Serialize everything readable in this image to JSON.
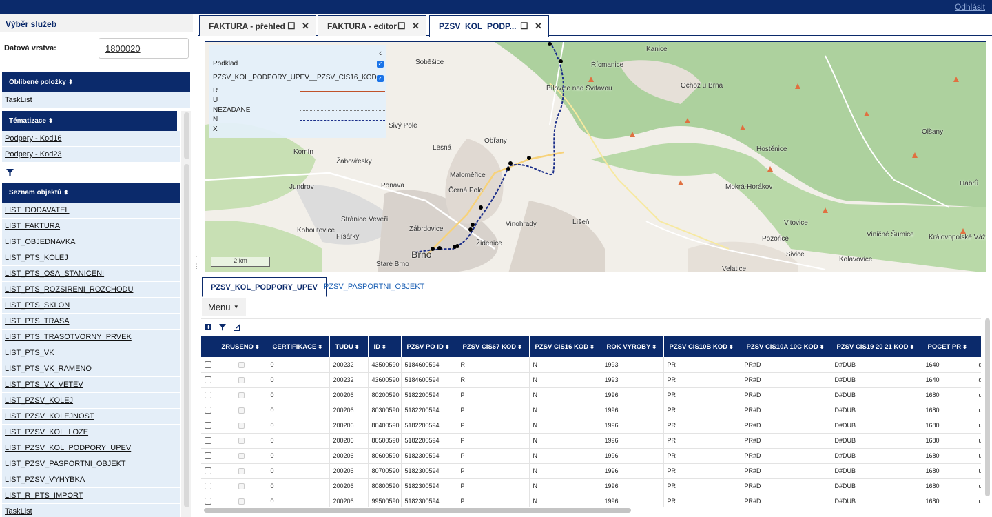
{
  "topbar": {
    "logout": "Odhlásit"
  },
  "left": {
    "title": "Výběr služeb",
    "data_layer_label": "Datová vrstva:",
    "data_layer_value": "1800020",
    "favorites": {
      "header": "Oblíbené položky",
      "items": [
        "TaskList"
      ]
    },
    "themes": {
      "header": "Tématizace",
      "items": [
        "Podpery - Kod16",
        "Podpery - Kod23"
      ]
    },
    "objects": {
      "header": "Seznam objektů",
      "items": [
        "LIST_DODAVATEL",
        "LIST_FAKTURA",
        "LIST_OBJEDNAVKA",
        "LIST_PTS_KOLEJ",
        "LIST_PTS_OSA_STANICENI",
        "LIST_PTS_ROZSIRENI_ROZCHODU",
        "LIST_PTS_SKLON",
        "LIST_PTS_TRASA",
        "LIST_PTS_TRASOTVORNY_PRVEK",
        "LIST_PTS_VK",
        "LIST_PTS_VK_RAMENO",
        "LIST_PTS_VK_VETEV",
        "LIST_PZSV_KOLEJ",
        "LIST_PZSV_KOLEJNOST",
        "LIST_PZSV_KOL_LOZE",
        "LIST_PZSV_KOL_PODPORY_UPEV",
        "LIST_PZSV_PASPORTNI_OBJEKT",
        "LIST_PZSV_VYHYBKA",
        "LIST_R_PTS_IMPORT",
        "TaskList"
      ]
    }
  },
  "tabs": [
    {
      "label": "FAKTURA - přehled"
    },
    {
      "label": "FAKTURA - editor"
    },
    {
      "label": "PZSV_KOL_PODP..."
    }
  ],
  "map": {
    "legend": {
      "base": "Podklad",
      "layer": "PZSV_KOL_PODPORY_UPEV__PZSV_CIS16_KOD",
      "entries": [
        {
          "label": "R",
          "color": "#c0522a",
          "style": "solid"
        },
        {
          "label": "U",
          "color": "#1c2f8a",
          "style": "solid"
        },
        {
          "label": "NEZADANE",
          "color": "#777777",
          "style": "dotted"
        },
        {
          "label": "N",
          "color": "#1c2f8a",
          "style": "dashed"
        },
        {
          "label": "X",
          "color": "#2c8a3a",
          "style": "dashed"
        }
      ]
    },
    "scale": "2 km",
    "places": [
      "Kanice",
      "Soběšice",
      "Řícmanice",
      "Ochoz u Brna",
      "Bílovice nad Svitavou",
      "Sivý Pole",
      "Lesná",
      "Obřany",
      "Komín",
      "Žabovřesky",
      "Maloměřice",
      "Hostěnice",
      "Olšany",
      "Jundrov",
      "Ponava",
      "Černá Pole",
      "Mokrá-Horákov",
      "Habrů",
      "Kohoutovice",
      "Stránice",
      "Veveří",
      "Vinohrady",
      "Líšeň",
      "Vitovice",
      "Písárky",
      "Zábrdovice",
      "Židenice",
      "Pozořice",
      "Viničné Šumice",
      "Královopolské Vážany",
      "Brno",
      "Staré Brno",
      "Sivice",
      "Kolavovice",
      "Velatice"
    ]
  },
  "subtabs": [
    "PZSV_KOL_PODPORY_UPEV",
    "PZSV_PASPORTNI_OBJEKT"
  ],
  "menu": "Menu",
  "table": {
    "columns": [
      "ZRUSENO",
      "CERTIFIKACE",
      "TUDU",
      "ID",
      "PZSV PO ID",
      "PZSV CIS67 KOD",
      "PZSV CIS16 KOD",
      "ROK VYROBY",
      "PZSV CIS10B KOD",
      "PZSV CIS10A 10C KOD",
      "PZSV CIS19 20 21 KOD",
      "POCET PR",
      ""
    ],
    "rows": [
      [
        "0",
        "200232",
        "43500590",
        "5184600594",
        "R",
        "N",
        "1993",
        "PR",
        "PR#D",
        "D#DUB",
        "1640",
        "d"
      ],
      [
        "0",
        "200232",
        "43600590",
        "5184600594",
        "R",
        "N",
        "1993",
        "PR",
        "PR#D",
        "D#DUB",
        "1640",
        "d"
      ],
      [
        "0",
        "200206",
        "80200590",
        "5182200594",
        "P",
        "N",
        "1996",
        "PR",
        "PR#D",
        "D#DUB",
        "1680",
        "u"
      ],
      [
        "0",
        "200206",
        "80300590",
        "5182200594",
        "P",
        "N",
        "1996",
        "PR",
        "PR#D",
        "D#DUB",
        "1680",
        "u"
      ],
      [
        "0",
        "200206",
        "80400590",
        "5182200594",
        "P",
        "N",
        "1996",
        "PR",
        "PR#D",
        "D#DUB",
        "1680",
        "u"
      ],
      [
        "0",
        "200206",
        "80500590",
        "5182200594",
        "P",
        "N",
        "1996",
        "PR",
        "PR#D",
        "D#DUB",
        "1680",
        "u"
      ],
      [
        "0",
        "200206",
        "80600590",
        "5182300594",
        "P",
        "N",
        "1996",
        "PR",
        "PR#D",
        "D#DUB",
        "1680",
        "u"
      ],
      [
        "0",
        "200206",
        "80700590",
        "5182300594",
        "P",
        "N",
        "1996",
        "PR",
        "PR#D",
        "D#DUB",
        "1680",
        "u"
      ],
      [
        "0",
        "200206",
        "80800590",
        "5182300594",
        "P",
        "N",
        "1996",
        "PR",
        "PR#D",
        "D#DUB",
        "1680",
        "u"
      ],
      [
        "0",
        "200206",
        "99500590",
        "5182300594",
        "P",
        "N",
        "1996",
        "PR",
        "PR#D",
        "D#DUB",
        "1680",
        "u"
      ]
    ]
  }
}
